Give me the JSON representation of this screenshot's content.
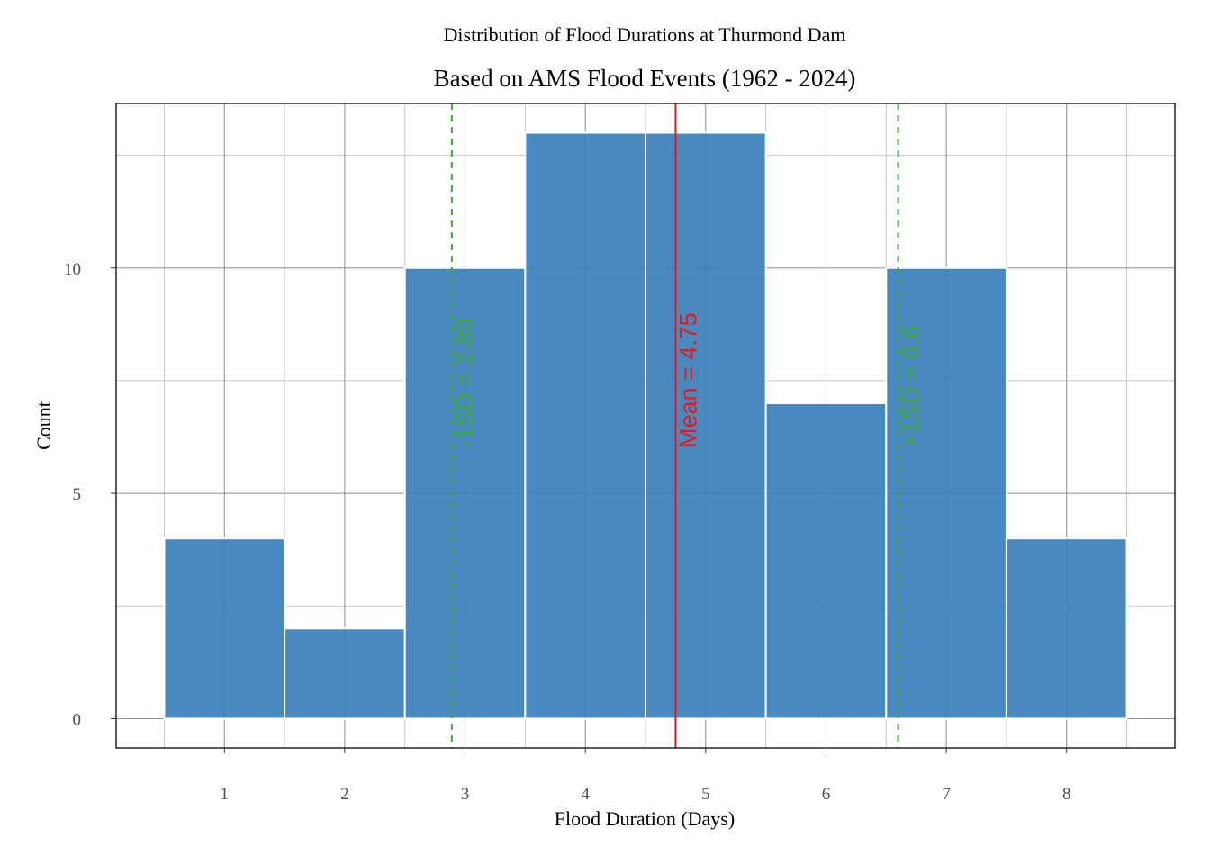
{
  "chart_data": {
    "type": "bar",
    "subtitle": "Distribution of Flood Durations at Thurmond Dam",
    "title": "Based on AMS Flood Events (1962 - 2024)",
    "xlabel": "Flood Duration (Days)",
    "ylabel": "Count",
    "categories": [
      1,
      2,
      3,
      4,
      5,
      6,
      7,
      8
    ],
    "values": [
      4,
      2,
      10,
      13,
      13,
      7,
      10,
      4
    ],
    "xlim": [
      0.1,
      8.9
    ],
    "ylim": [
      -0.65,
      13.65
    ],
    "x_ticks": [
      "1",
      "2",
      "3",
      "4",
      "5",
      "6",
      "7",
      "8"
    ],
    "y_ticks": [
      "0",
      "5",
      "10"
    ],
    "bar_color": "#3a7fbb",
    "grid": true,
    "reference_lines": [
      {
        "value": 2.89,
        "label": "-1SD = 2.89",
        "color": "#3aa83a",
        "style": "dashed"
      },
      {
        "value": 4.75,
        "label": "Mean = 4.75",
        "color": "#e31a1c",
        "style": "solid"
      },
      {
        "value": 6.6,
        "label": "+1SD = 6.6",
        "color": "#3aa83a",
        "style": "dashed"
      }
    ]
  }
}
